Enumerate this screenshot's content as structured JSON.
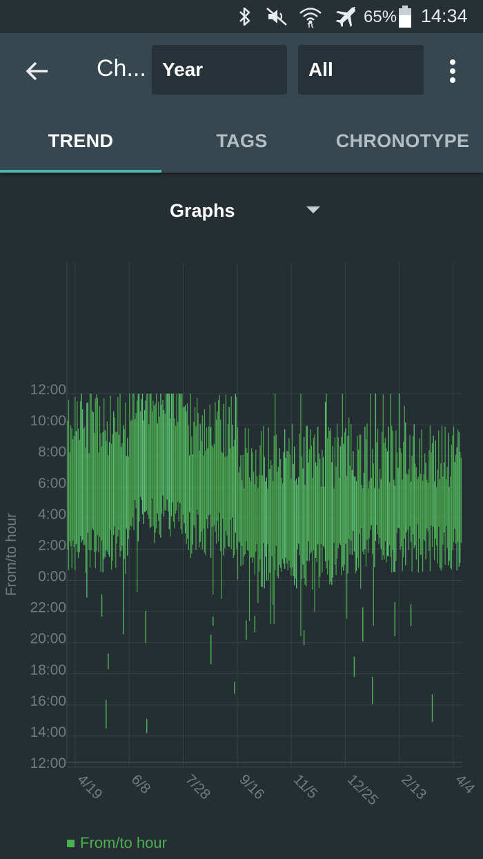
{
  "status_bar": {
    "battery_percent": "65%",
    "time": "14:34",
    "icons": [
      "bluetooth-icon",
      "mute-icon",
      "wifi-icon",
      "airplane-mode-icon",
      "battery-icon"
    ]
  },
  "app_bar": {
    "title": "Ch...",
    "period_select": "Year",
    "filter_select": "All",
    "icons": [
      "back-arrow-icon",
      "more-vert-icon"
    ]
  },
  "tabs": [
    {
      "label": "TREND",
      "active": true
    },
    {
      "label": "TAGS",
      "active": false
    },
    {
      "label": "CHRONOTYPE",
      "active": false
    }
  ],
  "view_selector": {
    "label": "Graphs"
  },
  "colors": {
    "background": "#252e32",
    "toolbar": "#37474f",
    "accent": "#4db6ac",
    "series": "#4caf50"
  },
  "chart_data": {
    "type": "bar",
    "subtype": "floating-range",
    "ylabel": "From/to hour",
    "y_tick_labels": [
      "12:00",
      "10:00",
      "8:00",
      "6:00",
      "4:00",
      "2:00",
      "0:00",
      "22:00",
      "20:00",
      "18:00",
      "16:00",
      "14:00",
      "12:00"
    ],
    "x_tick_labels": [
      "4/19",
      "6/8",
      "7/28",
      "9/16",
      "11/5",
      "12/25",
      "2/13",
      "4/4"
    ],
    "grid": true,
    "legend": "bottom-left",
    "series": [
      {
        "name": "From/to hour",
        "color": "#4caf50",
        "summary_by_period": [
          {
            "period": "Apr 19 - Jun 8",
            "typical_from": "2:00",
            "typical_to": "10:00"
          },
          {
            "period": "Jun 8 - Jul 28",
            "typical_from": "4:00",
            "typical_to": "12:00"
          },
          {
            "period": "Jul 28 - Sep 16",
            "typical_from": "3:00",
            "typical_to": "10:00"
          },
          {
            "period": "Sep 16 - Nov 5",
            "typical_from": "1:00",
            "typical_to": "8:00"
          },
          {
            "period": "Nov 5 - Dec 25",
            "typical_from": "1:00",
            "typical_to": "8:00"
          },
          {
            "period": "Dec 25 - Feb 13",
            "typical_from": "2:00",
            "typical_to": "8:00"
          },
          {
            "period": "Feb 13 - Apr 4",
            "typical_from": "2:00",
            "typical_to": "8:00"
          }
        ]
      }
    ]
  },
  "legend": {
    "label": "From/to hour"
  }
}
